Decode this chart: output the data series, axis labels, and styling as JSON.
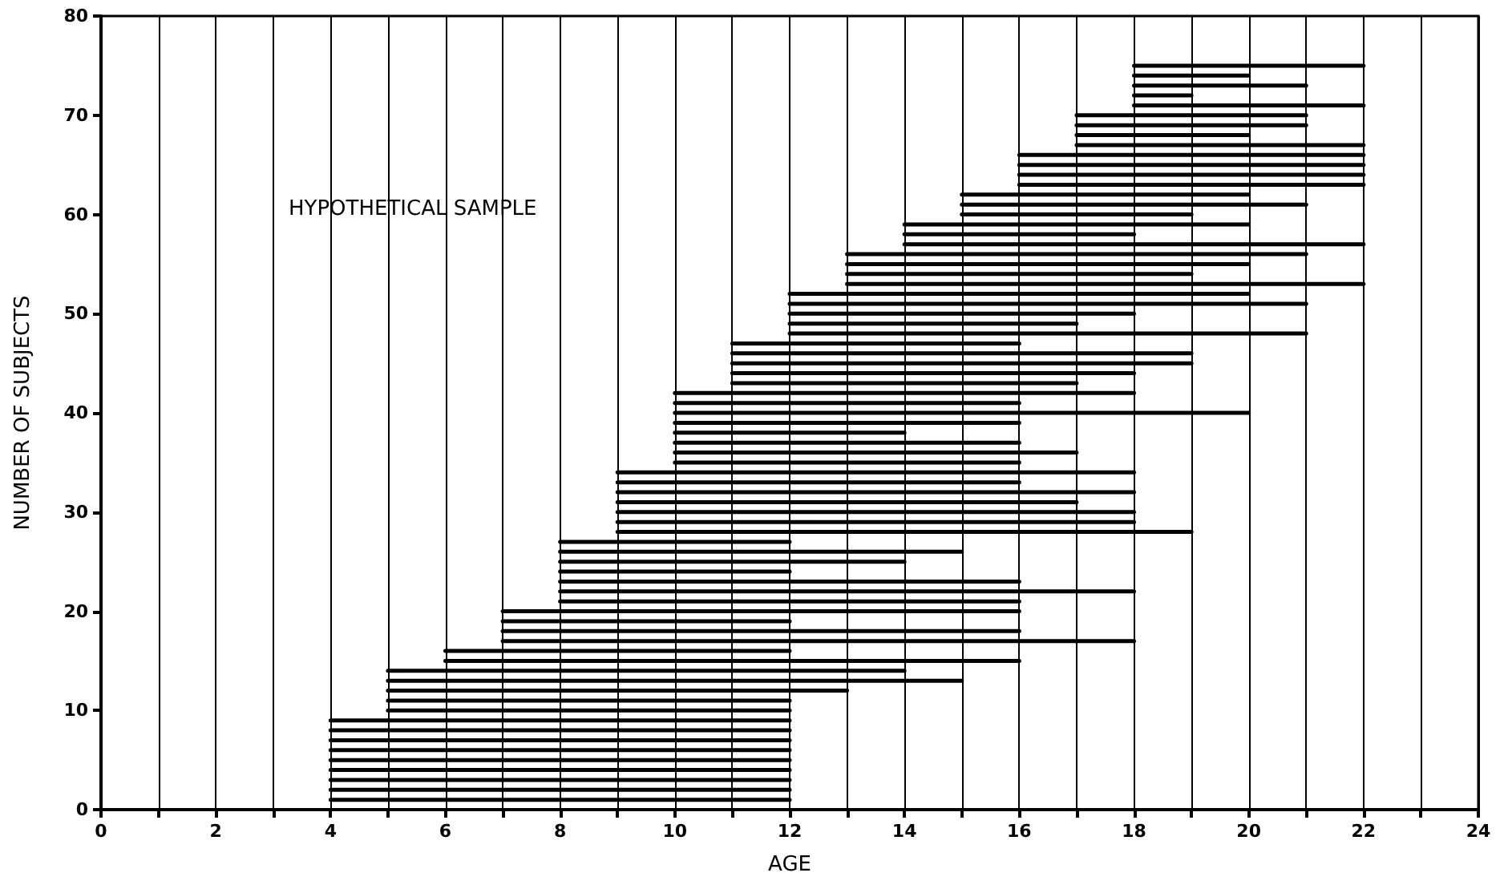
{
  "chart_data": {
    "type": "line",
    "xlabel": "AGE",
    "ylabel": "NUMBER OF SUBJECTS",
    "annotations": [
      "HYPOTHETICAL SAMPLE"
    ],
    "xlim": [
      0,
      24
    ],
    "ylim": [
      0,
      80
    ],
    "xticks": [
      0,
      {
        "value": 1,
        "label": null
      },
      2,
      {
        "value": 3,
        "label": null
      },
      4,
      {
        "value": 5,
        "label": null
      },
      6,
      {
        "value": 7,
        "label": null
      },
      8,
      {
        "value": 9,
        "label": null
      },
      10,
      {
        "value": 11,
        "label": null
      },
      12,
      {
        "value": 13,
        "label": null
      },
      14,
      {
        "value": 15,
        "label": null
      },
      16,
      {
        "value": 17,
        "label": null
      },
      18,
      {
        "value": 19,
        "label": null
      },
      20,
      {
        "value": 21,
        "label": null
      },
      22,
      {
        "value": 23,
        "label": null
      },
      24
    ],
    "yticks": [
      0,
      10,
      20,
      30,
      40,
      50,
      60,
      70,
      80
    ],
    "grid": "x",
    "marker": "none",
    "line_style": "solid",
    "series": [
      {
        "x": [
          4,
          12
        ],
        "values": [
          1,
          1
        ],
        "color": "#000000"
      },
      {
        "x": [
          4,
          12
        ],
        "values": [
          2,
          2
        ],
        "color": "#000000"
      },
      {
        "x": [
          4,
          12
        ],
        "values": [
          3,
          3
        ],
        "color": "#000000"
      },
      {
        "x": [
          4,
          12
        ],
        "values": [
          4,
          4
        ],
        "color": "#000000"
      },
      {
        "x": [
          4,
          12
        ],
        "values": [
          5,
          5
        ],
        "color": "#000000"
      },
      {
        "x": [
          4,
          12
        ],
        "values": [
          6,
          6
        ],
        "color": "#000000"
      },
      {
        "x": [
          4,
          12
        ],
        "values": [
          7,
          7
        ],
        "color": "#000000"
      },
      {
        "x": [
          4,
          12
        ],
        "values": [
          8,
          8
        ],
        "color": "#000000"
      },
      {
        "x": [
          4,
          12
        ],
        "values": [
          9,
          9
        ],
        "color": "#000000"
      },
      {
        "x": [
          5,
          12
        ],
        "values": [
          10,
          10
        ],
        "color": "#000000"
      },
      {
        "x": [
          5,
          12
        ],
        "values": [
          11,
          11
        ],
        "color": "#000000"
      },
      {
        "x": [
          5,
          13
        ],
        "values": [
          12,
          12
        ],
        "color": "#000000"
      },
      {
        "x": [
          5,
          15
        ],
        "values": [
          13,
          13
        ],
        "color": "#000000"
      },
      {
        "x": [
          5,
          14
        ],
        "values": [
          14,
          14
        ],
        "color": "#000000"
      },
      {
        "x": [
          6,
          16
        ],
        "values": [
          15,
          15
        ],
        "color": "#000000"
      },
      {
        "x": [
          6,
          12
        ],
        "values": [
          16,
          16
        ],
        "color": "#000000"
      },
      {
        "x": [
          7,
          18
        ],
        "values": [
          17,
          17
        ],
        "color": "#000000"
      },
      {
        "x": [
          7,
          16
        ],
        "values": [
          18,
          18
        ],
        "color": "#000000"
      },
      {
        "x": [
          7,
          12
        ],
        "values": [
          19,
          19
        ],
        "color": "#000000"
      },
      {
        "x": [
          7,
          16
        ],
        "values": [
          20,
          20
        ],
        "color": "#000000"
      },
      {
        "x": [
          8,
          16
        ],
        "values": [
          21,
          21
        ],
        "color": "#000000"
      },
      {
        "x": [
          8,
          18
        ],
        "values": [
          22,
          22
        ],
        "color": "#000000"
      },
      {
        "x": [
          8,
          16
        ],
        "values": [
          23,
          23
        ],
        "color": "#000000"
      },
      {
        "x": [
          8,
          12
        ],
        "values": [
          24,
          24
        ],
        "color": "#000000"
      },
      {
        "x": [
          8,
          14
        ],
        "values": [
          25,
          25
        ],
        "color": "#000000"
      },
      {
        "x": [
          8,
          15
        ],
        "values": [
          26,
          26
        ],
        "color": "#000000"
      },
      {
        "x": [
          8,
          12
        ],
        "values": [
          27,
          27
        ],
        "color": "#000000"
      },
      {
        "x": [
          9,
          19
        ],
        "values": [
          28,
          28
        ],
        "color": "#000000"
      },
      {
        "x": [
          9,
          18
        ],
        "values": [
          29,
          29
        ],
        "color": "#000000"
      },
      {
        "x": [
          9,
          18
        ],
        "values": [
          30,
          30
        ],
        "color": "#000000"
      },
      {
        "x": [
          9,
          17
        ],
        "values": [
          31,
          31
        ],
        "color": "#000000"
      },
      {
        "x": [
          9,
          18
        ],
        "values": [
          32,
          32
        ],
        "color": "#000000"
      },
      {
        "x": [
          9,
          16
        ],
        "values": [
          33,
          33
        ],
        "color": "#000000"
      },
      {
        "x": [
          9,
          18
        ],
        "values": [
          34,
          34
        ],
        "color": "#000000"
      },
      {
        "x": [
          10,
          16
        ],
        "values": [
          35,
          35
        ],
        "color": "#000000"
      },
      {
        "x": [
          10,
          17
        ],
        "values": [
          36,
          36
        ],
        "color": "#000000"
      },
      {
        "x": [
          10,
          16
        ],
        "values": [
          37,
          37
        ],
        "color": "#000000"
      },
      {
        "x": [
          10,
          14
        ],
        "values": [
          38,
          38
        ],
        "color": "#000000"
      },
      {
        "x": [
          10,
          16
        ],
        "values": [
          39,
          39
        ],
        "color": "#000000"
      },
      {
        "x": [
          10,
          20
        ],
        "values": [
          40,
          40
        ],
        "color": "#000000"
      },
      {
        "x": [
          10,
          16
        ],
        "values": [
          41,
          41
        ],
        "color": "#000000"
      },
      {
        "x": [
          10,
          18
        ],
        "values": [
          42,
          42
        ],
        "color": "#000000"
      },
      {
        "x": [
          11,
          17
        ],
        "values": [
          43,
          43
        ],
        "color": "#000000"
      },
      {
        "x": [
          11,
          18
        ],
        "values": [
          44,
          44
        ],
        "color": "#000000"
      },
      {
        "x": [
          11,
          19
        ],
        "values": [
          45,
          45
        ],
        "color": "#000000"
      },
      {
        "x": [
          11,
          19
        ],
        "values": [
          46,
          46
        ],
        "color": "#000000"
      },
      {
        "x": [
          11,
          16
        ],
        "values": [
          47,
          47
        ],
        "color": "#000000"
      },
      {
        "x": [
          12,
          21
        ],
        "values": [
          48,
          48
        ],
        "color": "#000000"
      },
      {
        "x": [
          12,
          17
        ],
        "values": [
          49,
          49
        ],
        "color": "#000000"
      },
      {
        "x": [
          12,
          18
        ],
        "values": [
          50,
          50
        ],
        "color": "#000000"
      },
      {
        "x": [
          12,
          21
        ],
        "values": [
          51,
          51
        ],
        "color": "#000000"
      },
      {
        "x": [
          12,
          20
        ],
        "values": [
          52,
          52
        ],
        "color": "#000000"
      },
      {
        "x": [
          13,
          22
        ],
        "values": [
          53,
          53
        ],
        "color": "#000000"
      },
      {
        "x": [
          13,
          19
        ],
        "values": [
          54,
          54
        ],
        "color": "#000000"
      },
      {
        "x": [
          13,
          20
        ],
        "values": [
          55,
          55
        ],
        "color": "#000000"
      },
      {
        "x": [
          13,
          21
        ],
        "values": [
          56,
          56
        ],
        "color": "#000000"
      },
      {
        "x": [
          14,
          22
        ],
        "values": [
          57,
          57
        ],
        "color": "#000000"
      },
      {
        "x": [
          14,
          18
        ],
        "values": [
          58,
          58
        ],
        "color": "#000000"
      },
      {
        "x": [
          14,
          20
        ],
        "values": [
          59,
          59
        ],
        "color": "#000000"
      },
      {
        "x": [
          15,
          19
        ],
        "values": [
          60,
          60
        ],
        "color": "#000000"
      },
      {
        "x": [
          15,
          21
        ],
        "values": [
          61,
          61
        ],
        "color": "#000000"
      },
      {
        "x": [
          15,
          20
        ],
        "values": [
          62,
          62
        ],
        "color": "#000000"
      },
      {
        "x": [
          16,
          22
        ],
        "values": [
          63,
          63
        ],
        "color": "#000000"
      },
      {
        "x": [
          16,
          22
        ],
        "values": [
          64,
          64
        ],
        "color": "#000000"
      },
      {
        "x": [
          16,
          22
        ],
        "values": [
          65,
          65
        ],
        "color": "#000000"
      },
      {
        "x": [
          16,
          22
        ],
        "values": [
          66,
          66
        ],
        "color": "#000000"
      },
      {
        "x": [
          17,
          22
        ],
        "values": [
          67,
          67
        ],
        "color": "#000000"
      },
      {
        "x": [
          17,
          20
        ],
        "values": [
          68,
          68
        ],
        "color": "#000000"
      },
      {
        "x": [
          17,
          21
        ],
        "values": [
          69,
          69
        ],
        "color": "#000000"
      },
      {
        "x": [
          17,
          21
        ],
        "values": [
          70,
          70
        ],
        "color": "#000000"
      },
      {
        "x": [
          18,
          22
        ],
        "values": [
          71,
          71
        ],
        "color": "#000000"
      },
      {
        "x": [
          18,
          19
        ],
        "values": [
          72,
          72
        ],
        "color": "#000000"
      },
      {
        "x": [
          18,
          21
        ],
        "values": [
          73,
          73
        ],
        "color": "#000000"
      },
      {
        "x": [
          18,
          20
        ],
        "values": [
          74,
          74
        ],
        "color": "#000000"
      },
      {
        "x": [
          18,
          22
        ],
        "values": [
          75,
          75
        ],
        "color": "#000000"
      }
    ]
  }
}
